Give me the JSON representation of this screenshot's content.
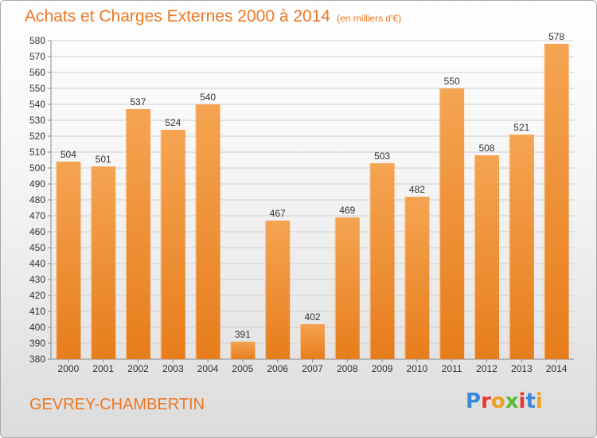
{
  "header": {
    "title": "Achats et Charges Externes 2000 à 2014",
    "unit": "(en milliers d'€)"
  },
  "footer": {
    "city": "GEVREY-CHAMBERTIN",
    "logo_text": "Proxiti",
    "logo_colors": [
      "#3a8ad8",
      "#e23b2e",
      "#f0a020",
      "#5ab833",
      "#e23b2e",
      "#3a8ad8",
      "#f0a020"
    ]
  },
  "colors": {
    "bar_light": "#f5a452",
    "bar_dark": "#e77d1c",
    "bar_edge": "#f7b978",
    "title": "#ee7722",
    "grid": "#c8c8c8"
  },
  "chart_data": {
    "type": "bar",
    "title": "Achats et Charges Externes 2000 à 2014",
    "subtitle": "(en milliers d'€)",
    "categories": [
      "2000",
      "2001",
      "2002",
      "2003",
      "2004",
      "2005",
      "2006",
      "2007",
      "2008",
      "2009",
      "2010",
      "2011",
      "2012",
      "2013",
      "2014"
    ],
    "values": [
      504,
      501,
      537,
      524,
      540,
      391,
      467,
      402,
      469,
      503,
      482,
      550,
      508,
      521,
      578
    ],
    "ylim": [
      380,
      580
    ],
    "ytick_step": 10,
    "grid": true,
    "data_labels": true
  }
}
